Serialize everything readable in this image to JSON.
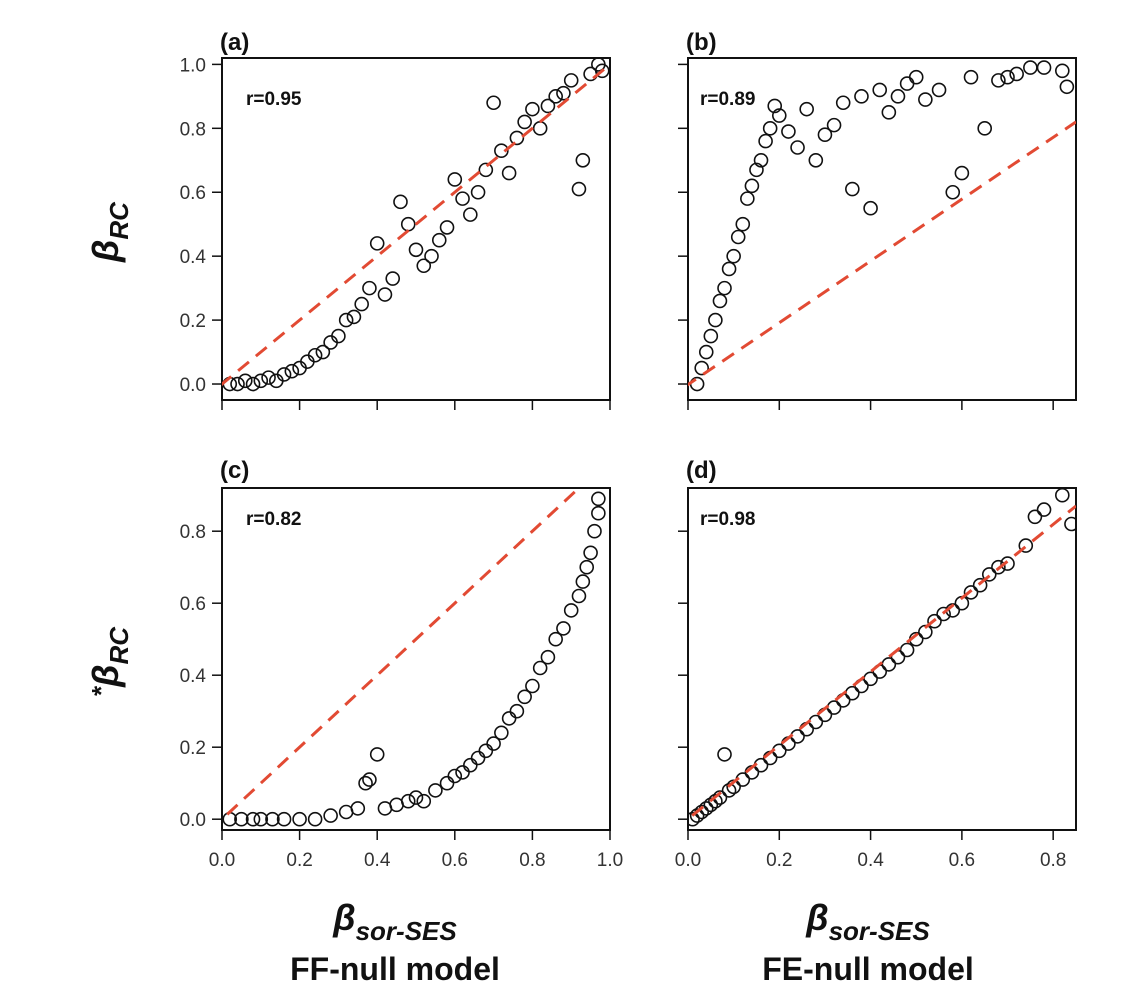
{
  "figure": {
    "ylabel_top": "βRC",
    "ylabel_top_main": "β",
    "ylabel_top_sub": "RC",
    "ylabel_bottom": "*βRC",
    "ylabel_bottom_star": "*",
    "ylabel_bottom_main": "β",
    "ylabel_bottom_sub": "RC",
    "xlabel": "βsor-SES",
    "xlabel_main": "β",
    "xlabel_sub": "sor-SES",
    "column_titles": [
      "FF-null model",
      "FE-null model"
    ]
  },
  "chart_data": [
    {
      "id": "a",
      "type": "scatter",
      "panel_label": "(a)",
      "annotation": "r=0.95",
      "xlim": [
        0,
        1.0
      ],
      "ylim": [
        -0.05,
        1.02
      ],
      "xticks": [
        0,
        0.2,
        0.4,
        0.6,
        0.8,
        1.0
      ],
      "yticks": [
        0,
        0.2,
        0.4,
        0.6,
        0.8,
        1.0
      ],
      "ytick_labels": [
        "0.0",
        "0.2",
        "0.4",
        "0.6",
        "0.8",
        "1.0"
      ],
      "reference_line": {
        "x": [
          -0.05,
          1.0
        ],
        "y": [
          -0.05,
          1.0
        ],
        "color": "#e24a33"
      },
      "points": [
        [
          0.02,
          0.0
        ],
        [
          0.04,
          0.0
        ],
        [
          0.06,
          0.01
        ],
        [
          0.08,
          0.0
        ],
        [
          0.1,
          0.01
        ],
        [
          0.12,
          0.02
        ],
        [
          0.14,
          0.01
        ],
        [
          0.16,
          0.03
        ],
        [
          0.18,
          0.04
        ],
        [
          0.2,
          0.05
        ],
        [
          0.22,
          0.07
        ],
        [
          0.24,
          0.09
        ],
        [
          0.26,
          0.1
        ],
        [
          0.28,
          0.13
        ],
        [
          0.3,
          0.15
        ],
        [
          0.32,
          0.2
        ],
        [
          0.34,
          0.21
        ],
        [
          0.36,
          0.25
        ],
        [
          0.38,
          0.3
        ],
        [
          0.4,
          0.44
        ],
        [
          0.42,
          0.28
        ],
        [
          0.44,
          0.33
        ],
        [
          0.46,
          0.57
        ],
        [
          0.48,
          0.5
        ],
        [
          0.5,
          0.42
        ],
        [
          0.52,
          0.37
        ],
        [
          0.54,
          0.4
        ],
        [
          0.56,
          0.45
        ],
        [
          0.58,
          0.49
        ],
        [
          0.6,
          0.64
        ],
        [
          0.62,
          0.58
        ],
        [
          0.64,
          0.53
        ],
        [
          0.66,
          0.6
        ],
        [
          0.68,
          0.67
        ],
        [
          0.7,
          0.88
        ],
        [
          0.72,
          0.73
        ],
        [
          0.74,
          0.66
        ],
        [
          0.76,
          0.77
        ],
        [
          0.78,
          0.82
        ],
        [
          0.8,
          0.86
        ],
        [
          0.82,
          0.8
        ],
        [
          0.84,
          0.87
        ],
        [
          0.86,
          0.9
        ],
        [
          0.88,
          0.91
        ],
        [
          0.9,
          0.95
        ],
        [
          0.92,
          0.61
        ],
        [
          0.93,
          0.7
        ],
        [
          0.95,
          0.97
        ],
        [
          0.97,
          1.0
        ],
        [
          0.98,
          0.98
        ]
      ]
    },
    {
      "id": "b",
      "type": "scatter",
      "panel_label": "(b)",
      "annotation": "r=0.89",
      "xlim": [
        0,
        0.85
      ],
      "ylim": [
        -0.05,
        1.02
      ],
      "xticks": [
        0,
        0.2,
        0.4,
        0.6,
        0.8
      ],
      "yticks": [
        0,
        0.2,
        0.4,
        0.6,
        0.8,
        1.0
      ],
      "ytick_labels": [],
      "reference_line": {
        "x": [
          -0.05,
          0.85
        ],
        "y": [
          -0.05,
          0.82
        ],
        "color": "#e24a33"
      },
      "points": [
        [
          0.02,
          0.0
        ],
        [
          0.03,
          0.05
        ],
        [
          0.04,
          0.1
        ],
        [
          0.05,
          0.15
        ],
        [
          0.06,
          0.2
        ],
        [
          0.07,
          0.26
        ],
        [
          0.08,
          0.3
        ],
        [
          0.09,
          0.36
        ],
        [
          0.1,
          0.4
        ],
        [
          0.11,
          0.46
        ],
        [
          0.12,
          0.5
        ],
        [
          0.13,
          0.58
        ],
        [
          0.14,
          0.62
        ],
        [
          0.15,
          0.67
        ],
        [
          0.16,
          0.7
        ],
        [
          0.17,
          0.76
        ],
        [
          0.18,
          0.8
        ],
        [
          0.19,
          0.87
        ],
        [
          0.2,
          0.84
        ],
        [
          0.22,
          0.79
        ],
        [
          0.24,
          0.74
        ],
        [
          0.26,
          0.86
        ],
        [
          0.28,
          0.7
        ],
        [
          0.3,
          0.78
        ],
        [
          0.32,
          0.81
        ],
        [
          0.34,
          0.88
        ],
        [
          0.36,
          0.61
        ],
        [
          0.38,
          0.9
        ],
        [
          0.4,
          0.55
        ],
        [
          0.42,
          0.92
        ],
        [
          0.44,
          0.85
        ],
        [
          0.46,
          0.9
        ],
        [
          0.48,
          0.94
        ],
        [
          0.5,
          0.96
        ],
        [
          0.52,
          0.89
        ],
        [
          0.55,
          0.92
        ],
        [
          0.58,
          0.6
        ],
        [
          0.6,
          0.66
        ],
        [
          0.62,
          0.96
        ],
        [
          0.65,
          0.8
        ],
        [
          0.68,
          0.95
        ],
        [
          0.7,
          0.96
        ],
        [
          0.72,
          0.97
        ],
        [
          0.75,
          0.99
        ],
        [
          0.78,
          0.99
        ],
        [
          0.82,
          0.98
        ],
        [
          0.83,
          0.93
        ]
      ]
    },
    {
      "id": "c",
      "type": "scatter",
      "panel_label": "(c)",
      "annotation": "r=0.82",
      "xlim": [
        0,
        1.0
      ],
      "ylim": [
        -0.03,
        0.92
      ],
      "xticks": [
        0,
        0.2,
        0.4,
        0.6,
        0.8,
        1.0
      ],
      "xtick_labels": [
        "0.0",
        "0.2",
        "0.4",
        "0.6",
        "0.8",
        "1.0"
      ],
      "yticks": [
        0,
        0.2,
        0.4,
        0.6,
        0.8
      ],
      "ytick_labels": [
        "0.0",
        "0.2",
        "0.4",
        "0.6",
        "0.8"
      ],
      "reference_line": {
        "x": [
          -0.03,
          0.92
        ],
        "y": [
          -0.03,
          0.92
        ],
        "color": "#e24a33"
      },
      "points": [
        [
          0.02,
          0.0
        ],
        [
          0.05,
          0.0
        ],
        [
          0.08,
          0.0
        ],
        [
          0.1,
          0.0
        ],
        [
          0.13,
          0.0
        ],
        [
          0.16,
          0.0
        ],
        [
          0.2,
          0.0
        ],
        [
          0.24,
          0.0
        ],
        [
          0.28,
          0.01
        ],
        [
          0.32,
          0.02
        ],
        [
          0.35,
          0.03
        ],
        [
          0.37,
          0.1
        ],
        [
          0.38,
          0.11
        ],
        [
          0.4,
          0.18
        ],
        [
          0.42,
          0.03
        ],
        [
          0.45,
          0.04
        ],
        [
          0.48,
          0.05
        ],
        [
          0.5,
          0.06
        ],
        [
          0.52,
          0.05
        ],
        [
          0.55,
          0.08
        ],
        [
          0.58,
          0.1
        ],
        [
          0.6,
          0.12
        ],
        [
          0.62,
          0.13
        ],
        [
          0.64,
          0.15
        ],
        [
          0.66,
          0.17
        ],
        [
          0.68,
          0.19
        ],
        [
          0.7,
          0.21
        ],
        [
          0.72,
          0.24
        ],
        [
          0.74,
          0.28
        ],
        [
          0.76,
          0.3
        ],
        [
          0.78,
          0.34
        ],
        [
          0.8,
          0.37
        ],
        [
          0.82,
          0.42
        ],
        [
          0.84,
          0.45
        ],
        [
          0.86,
          0.5
        ],
        [
          0.88,
          0.53
        ],
        [
          0.9,
          0.58
        ],
        [
          0.92,
          0.62
        ],
        [
          0.93,
          0.66
        ],
        [
          0.94,
          0.7
        ],
        [
          0.95,
          0.74
        ],
        [
          0.96,
          0.8
        ],
        [
          0.97,
          0.85
        ],
        [
          0.97,
          0.89
        ]
      ]
    },
    {
      "id": "d",
      "type": "scatter",
      "panel_label": "(d)",
      "annotation": "r=0.98",
      "xlim": [
        0,
        0.85
      ],
      "ylim": [
        -0.03,
        0.92
      ],
      "xticks": [
        0,
        0.2,
        0.4,
        0.6,
        0.8
      ],
      "xtick_labels": [
        "0.0",
        "0.2",
        "0.4",
        "0.6",
        "0.8"
      ],
      "yticks": [
        0,
        0.2,
        0.4,
        0.6,
        0.8
      ],
      "ytick_labels": [],
      "reference_line": {
        "x": [
          -0.03,
          0.85
        ],
        "y": [
          -0.03,
          0.87
        ],
        "color": "#e24a33"
      },
      "points": [
        [
          0.01,
          0.0
        ],
        [
          0.02,
          0.01
        ],
        [
          0.03,
          0.02
        ],
        [
          0.04,
          0.03
        ],
        [
          0.05,
          0.04
        ],
        [
          0.06,
          0.05
        ],
        [
          0.07,
          0.06
        ],
        [
          0.08,
          0.18
        ],
        [
          0.09,
          0.08
        ],
        [
          0.1,
          0.09
        ],
        [
          0.12,
          0.11
        ],
        [
          0.14,
          0.13
        ],
        [
          0.16,
          0.15
        ],
        [
          0.18,
          0.17
        ],
        [
          0.2,
          0.19
        ],
        [
          0.22,
          0.21
        ],
        [
          0.24,
          0.23
        ],
        [
          0.26,
          0.25
        ],
        [
          0.28,
          0.27
        ],
        [
          0.3,
          0.29
        ],
        [
          0.32,
          0.31
        ],
        [
          0.34,
          0.33
        ],
        [
          0.36,
          0.35
        ],
        [
          0.38,
          0.37
        ],
        [
          0.4,
          0.39
        ],
        [
          0.42,
          0.41
        ],
        [
          0.44,
          0.43
        ],
        [
          0.46,
          0.45
        ],
        [
          0.48,
          0.47
        ],
        [
          0.5,
          0.5
        ],
        [
          0.52,
          0.52
        ],
        [
          0.54,
          0.55
        ],
        [
          0.56,
          0.57
        ],
        [
          0.58,
          0.58
        ],
        [
          0.6,
          0.6
        ],
        [
          0.62,
          0.63
        ],
        [
          0.64,
          0.65
        ],
        [
          0.66,
          0.68
        ],
        [
          0.68,
          0.7
        ],
        [
          0.7,
          0.71
        ],
        [
          0.74,
          0.76
        ],
        [
          0.76,
          0.84
        ],
        [
          0.78,
          0.86
        ],
        [
          0.82,
          0.9
        ],
        [
          0.84,
          0.82
        ]
      ]
    }
  ]
}
